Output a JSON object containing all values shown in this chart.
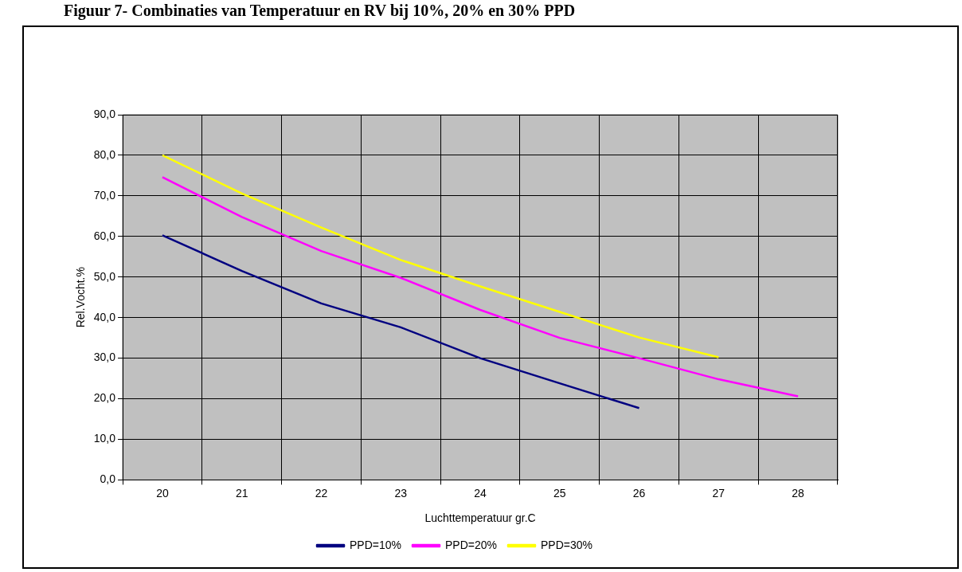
{
  "chart_data": {
    "type": "line",
    "title": "Figuur 7- Combinaties van Temperatuur en RV bij 10%, 20% en 30% PPD",
    "xlabel": "Luchttemperatuur gr.C",
    "ylabel": "Rel.Vocht.%",
    "categories": [
      "20",
      "21",
      "22",
      "23",
      "24",
      "25",
      "26",
      "27",
      "28"
    ],
    "series": [
      {
        "name": "PPD=10%",
        "color": "#000080",
        "values": [
          60.3,
          51.5,
          43.5,
          37.6,
          30.0,
          23.8,
          17.7,
          null,
          null
        ]
      },
      {
        "name": "PPD=20%",
        "color": "#ff00ff",
        "values": [
          74.6,
          64.8,
          56.4,
          49.8,
          41.9,
          35.0,
          30.0,
          24.8,
          20.6
        ]
      },
      {
        "name": "PPD=30%",
        "color": "#ffff00",
        "values": [
          80.0,
          70.6,
          62.2,
          54.2,
          47.7,
          41.4,
          35.1,
          30.2,
          null
        ]
      }
    ],
    "ylim": [
      0,
      90
    ],
    "yticks": [
      {
        "value": 0,
        "label": "0,0"
      },
      {
        "value": 10,
        "label": "10,0"
      },
      {
        "value": 20,
        "label": "20,0"
      },
      {
        "value": 30,
        "label": "30,0"
      },
      {
        "value": 40,
        "label": "40,0"
      },
      {
        "value": 50,
        "label": "50,0"
      },
      {
        "value": 60,
        "label": "60,0"
      },
      {
        "value": 70,
        "label": "70,0"
      },
      {
        "value": 80,
        "label": "80,0"
      },
      {
        "value": 90,
        "label": "90,0"
      }
    ],
    "grid": true,
    "legend": "bottom",
    "marker": "none",
    "line_style": "solid"
  }
}
